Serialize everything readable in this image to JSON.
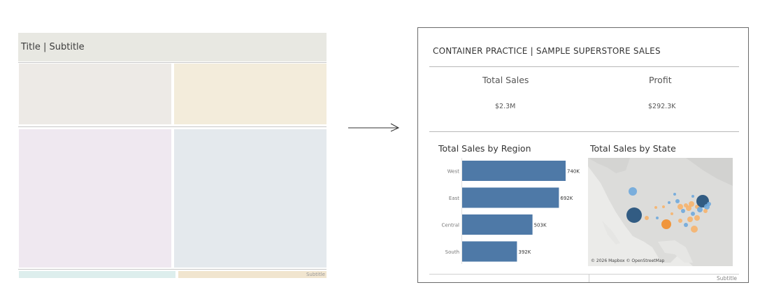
{
  "wireframe": {
    "title": "Title | Subtitle",
    "footer_subtitle": "Subtitle"
  },
  "dashboard": {
    "title": "CONTAINER PRACTICE | SAMPLE SUPERSTORE SALES",
    "kpis": [
      {
        "label": "Total Sales",
        "value": "$2.3M"
      },
      {
        "label": "Profit",
        "value": "$292.3K"
      }
    ],
    "region_chart_title": "Total Sales by Region",
    "state_map_title": "Total Sales by State",
    "map_credit": "© 2026 Mapbox © OpenStreetMap",
    "footer_subtitle": "Subtitle"
  },
  "chart_data": {
    "type": "bar",
    "orientation": "horizontal",
    "title": "Total Sales by Region",
    "categories": [
      "West",
      "East",
      "Central",
      "South"
    ],
    "values": [
      740,
      692,
      503,
      392
    ],
    "data_labels": [
      "740K",
      "692K",
      "503K",
      "392K"
    ],
    "xlim": [
      0,
      800
    ],
    "bar_color": "#4e79a7",
    "grid": false
  },
  "colors": {
    "bar": "#4e79a7",
    "map_dark_blue": "#1f4e79",
    "map_light_blue": "#6fa8dc",
    "map_orange": "#f28e2b",
    "map_light_orange": "#f6b26b"
  }
}
